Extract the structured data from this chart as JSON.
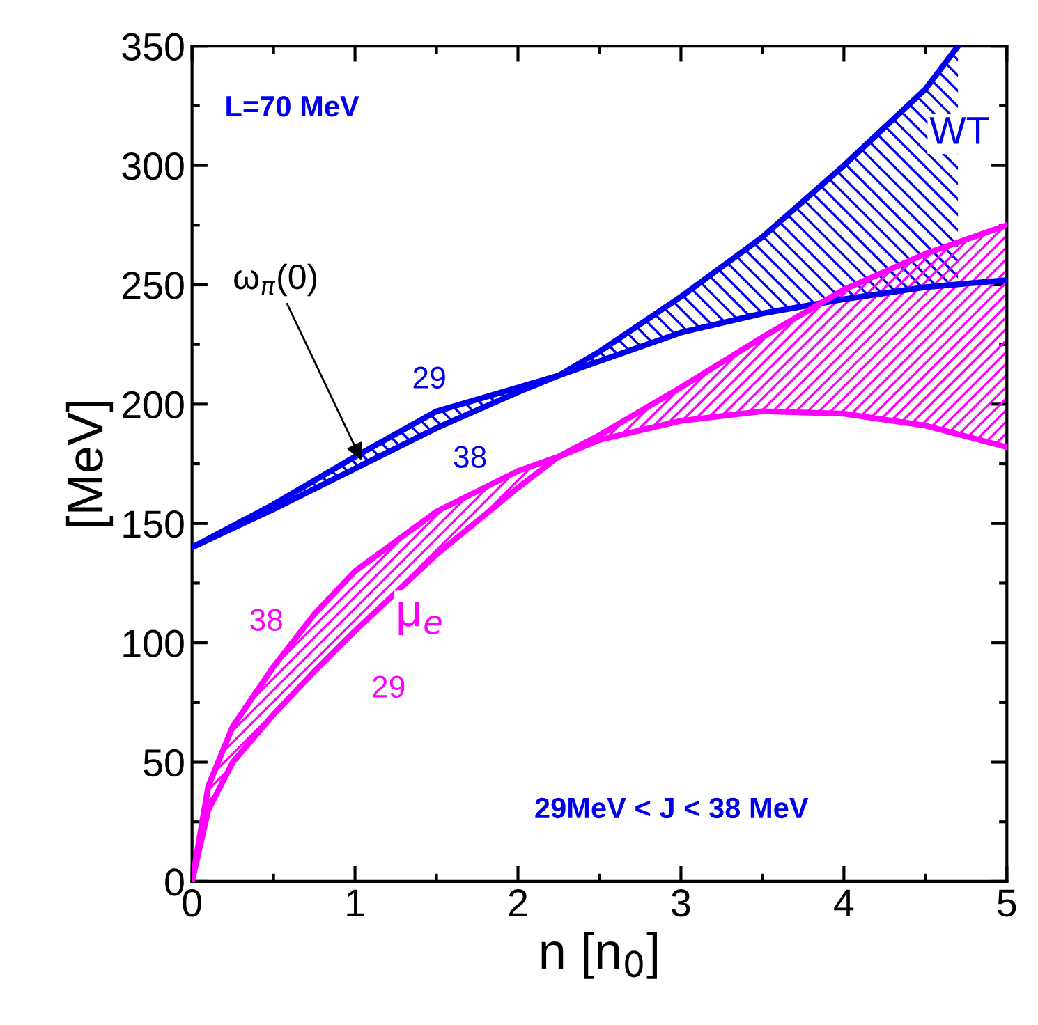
{
  "chart_data": {
    "type": "line",
    "xlabel": "n [n$_{0}$]",
    "ylabel": "[MeV]",
    "xlim": [
      0,
      5
    ],
    "ylim": [
      0,
      350
    ],
    "xticks": [
      0,
      1,
      2,
      3,
      4,
      5
    ],
    "yticks": [
      0,
      50,
      100,
      150,
      200,
      250,
      300,
      350
    ],
    "grid": false,
    "legend": false,
    "marker": "none",
    "line_style": "solid",
    "series": [
      {
        "name": "29",
        "color": "#0000ee",
        "x": [
          0,
          0.5,
          1,
          1.5,
          2,
          2.25,
          2.5,
          3,
          3.5,
          4,
          4.5,
          5
        ],
        "values": [
          140,
          158,
          178,
          197,
          207,
          212,
          218,
          230,
          238,
          244,
          249,
          252
        ]
      },
      {
        "name": "38",
        "color": "#0000ee",
        "x": [
          0,
          0.5,
          1,
          1.5,
          2,
          2.25,
          2.5,
          3,
          3.5,
          4,
          4.5,
          4.7
        ],
        "values": [
          140,
          156,
          173,
          190,
          205,
          212,
          222,
          245,
          270,
          300,
          332,
          350
        ],
        "lower": [
          140,
          158,
          178,
          197,
          207,
          212,
          218,
          230,
          238,
          244,
          249,
          250
        ],
        "upper": [
          140,
          156,
          173,
          190,
          205,
          212,
          222,
          245,
          270,
          300,
          332,
          350
        ]
      },
      {
        "name": "38",
        "color": "#ff00ff",
        "x": [
          0,
          0.1,
          0.25,
          0.5,
          0.75,
          1,
          1.5,
          2,
          2.25,
          2.5,
          3,
          3.5,
          4,
          4.5,
          5
        ],
        "values": [
          0,
          40,
          65,
          90,
          112,
          130,
          155,
          172,
          178,
          187,
          207,
          228,
          248,
          263,
          275
        ],
        "lower": [
          0,
          30,
          50,
          70,
          88,
          105,
          137,
          165,
          178,
          185,
          193,
          197,
          196,
          191,
          182
        ],
        "upper": [
          0,
          40,
          65,
          90,
          112,
          130,
          155,
          172,
          178,
          187,
          207,
          228,
          248,
          263,
          275
        ]
      },
      {
        "name": "29",
        "color": "#ff00ff",
        "x": [
          0,
          0.1,
          0.25,
          0.5,
          0.75,
          1,
          1.5,
          2,
          2.25,
          2.5,
          3,
          3.5,
          4,
          4.5,
          5
        ],
        "values": [
          0,
          30,
          50,
          70,
          88,
          105,
          137,
          165,
          178,
          185,
          193,
          197,
          196,
          191,
          182
        ]
      }
    ],
    "annotations": [
      "L=70 MeV",
      "29MeV < J < 38 MeV",
      "WT",
      {
        "text": "ω$_{π}$(0)",
        "x": 1.05,
        "y": 175
      },
      "μ$_{e}$"
    ]
  }
}
